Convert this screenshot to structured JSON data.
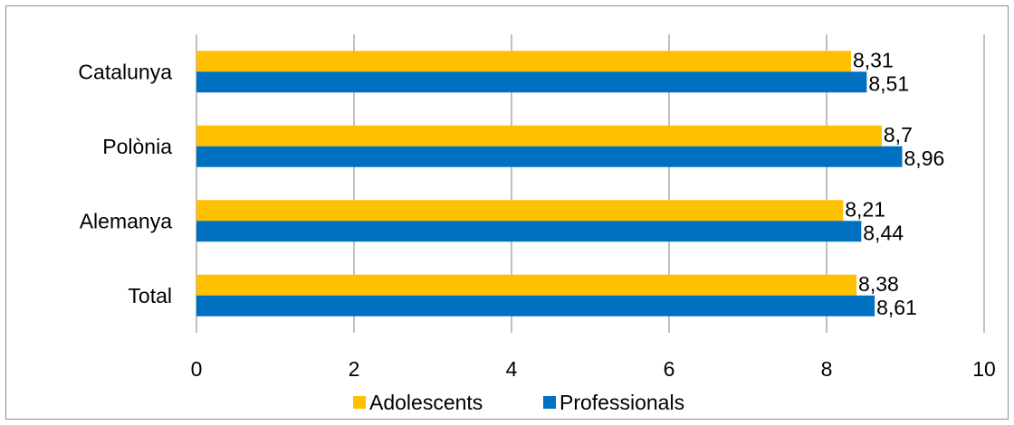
{
  "chart_data": {
    "type": "bar",
    "orientation": "horizontal",
    "categories": [
      "Catalunya",
      "Polònia",
      "Alemanya",
      "Total"
    ],
    "series": [
      {
        "name": "Adolescents",
        "values": [
          8.31,
          8.7,
          8.21,
          8.38
        ],
        "labels": [
          "8,31",
          "8,7",
          "8,21",
          "8,38"
        ],
        "color": "#FFC000"
      },
      {
        "name": "Professionals",
        "values": [
          8.51,
          8.96,
          8.44,
          8.61
        ],
        "labels": [
          "8,51",
          "8,96",
          "8,44",
          "8,61"
        ],
        "color": "#0070C0"
      }
    ],
    "xlim": [
      0,
      10
    ],
    "xticks": [
      "0",
      "2",
      "4",
      "6",
      "8",
      "10"
    ],
    "grid": "vertical",
    "legend": "bottom"
  }
}
